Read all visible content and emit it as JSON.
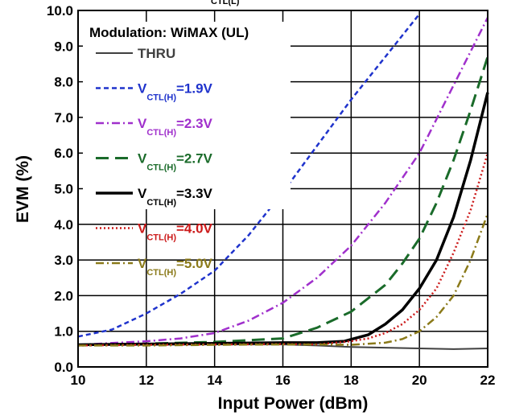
{
  "chart_data": {
    "type": "line",
    "top_label": "CTL(L)",
    "xlabel": "Input Power  (dBm)",
    "ylabel": "EVM  (%)",
    "xlim": [
      10,
      22
    ],
    "ylim": [
      0,
      10
    ],
    "xticks": [
      "10",
      "12",
      "14",
      "16",
      "18",
      "20",
      "22"
    ],
    "yticks": [
      "0.0",
      "1.0",
      "2.0",
      "3.0",
      "4.0",
      "5.0",
      "6.0",
      "7.0",
      "8.0",
      "9.0",
      "10.0"
    ],
    "grid": true,
    "legend_title": "Modulation: WiMAX (UL)",
    "legend_position": "top-left",
    "series": [
      {
        "name": "THRU",
        "color": "#404040",
        "dash": "solid",
        "x": [
          10,
          12,
          14,
          16,
          17,
          18,
          19,
          20,
          21,
          22
        ],
        "y": [
          0.62,
          0.62,
          0.63,
          0.63,
          0.6,
          0.56,
          0.54,
          0.52,
          0.5,
          0.52
        ]
      },
      {
        "name": "V CTL(H) =1.9V",
        "prefix": "V",
        "sub": "CTL(H)",
        "suffix": "=1.9V",
        "color": "#1f33cc",
        "dash": "dashed",
        "x": [
          10,
          11,
          12,
          13,
          14,
          15,
          16,
          17,
          18,
          19,
          19.5,
          20
        ],
        "y": [
          0.85,
          1.05,
          1.5,
          2.05,
          2.7,
          3.7,
          4.9,
          6.2,
          7.5,
          8.7,
          9.3,
          9.9
        ]
      },
      {
        "name": "V CTL(H) =2.3V",
        "prefix": "V",
        "sub": "CTL(H)",
        "suffix": "=2.3V",
        "color": "#a030cc",
        "dash": "dashdot",
        "x": [
          10,
          12,
          13,
          14,
          15,
          16,
          17,
          18,
          19,
          20,
          21,
          22
        ],
        "y": [
          0.62,
          0.72,
          0.8,
          0.95,
          1.3,
          1.8,
          2.5,
          3.4,
          4.6,
          6.0,
          7.9,
          9.8
        ]
      },
      {
        "name": "V CTL(H) =2.7V",
        "prefix": "V",
        "sub": "CTL(H)",
        "suffix": "=2.7V",
        "color": "#1a6b2a",
        "dash": "longdash",
        "x": [
          10,
          12,
          14,
          16,
          17,
          18,
          19,
          19.5,
          20,
          20.5,
          21,
          21.5,
          22
        ],
        "y": [
          0.62,
          0.65,
          0.7,
          0.8,
          1.1,
          1.55,
          2.3,
          2.9,
          3.6,
          4.6,
          5.8,
          7.2,
          8.7
        ]
      },
      {
        "name": "V CTL(H) =3.3V",
        "prefix": "V",
        "sub": "CTL(H)",
        "suffix": "=3.3V",
        "color": "#000000",
        "dash": "solid-thick",
        "x": [
          10,
          12,
          14,
          16,
          17,
          17.8,
          18.5,
          19,
          19.5,
          20,
          20.5,
          21,
          21.5,
          22
        ],
        "y": [
          0.62,
          0.64,
          0.66,
          0.68,
          0.68,
          0.72,
          0.9,
          1.2,
          1.6,
          2.2,
          3.0,
          4.2,
          5.8,
          7.7
        ]
      },
      {
        "name": "V CTL(H) =4.0V",
        "prefix": "V",
        "sub": "CTL(H)",
        "suffix": "=4.0V",
        "color": "#cc1a1a",
        "dash": "dotted",
        "x": [
          10,
          12,
          14,
          16,
          17,
          18,
          18.5,
          19,
          19.5,
          20,
          20.5,
          21,
          21.5,
          22
        ],
        "y": [
          0.6,
          0.62,
          0.63,
          0.64,
          0.63,
          0.72,
          0.8,
          0.95,
          1.2,
          1.6,
          2.2,
          3.2,
          4.4,
          6.0
        ]
      },
      {
        "name": "V CTL(H) =5.0V",
        "prefix": "V",
        "sub": "CTL(H)",
        "suffix": "=5.0V",
        "color": "#8b7a1a",
        "dash": "dashdot",
        "x": [
          10,
          12,
          14,
          16,
          17,
          18,
          19,
          19.5,
          20,
          20.5,
          21,
          21.5,
          22
        ],
        "y": [
          0.6,
          0.6,
          0.62,
          0.63,
          0.63,
          0.62,
          0.68,
          0.78,
          1.0,
          1.4,
          2.0,
          3.0,
          4.3
        ]
      }
    ]
  }
}
